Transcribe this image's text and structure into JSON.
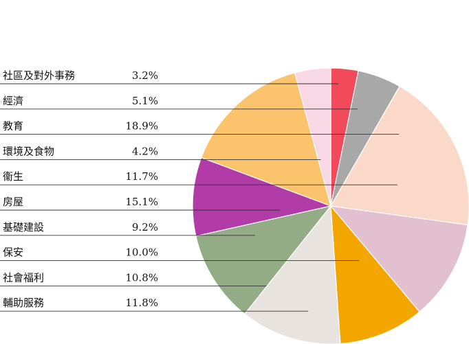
{
  "chart_data": {
    "type": "pie",
    "title": "",
    "categories": [
      "社區及對外事務",
      "經濟",
      "教育",
      "環境及食物",
      "衞生",
      "房屋",
      "基礎建設",
      "保安",
      "社會福利",
      "輔助服務"
    ],
    "values": [
      3.2,
      5.1,
      18.9,
      4.2,
      11.7,
      15.1,
      9.2,
      10.0,
      10.8,
      11.8
    ],
    "value_labels": [
      "3.2%",
      "5.1%",
      "18.9%",
      "4.2%",
      "11.7%",
      "15.1%",
      "9.2%",
      "10.0%",
      "10.8%",
      "11.8%"
    ],
    "colors": [
      "#f24a5a",
      "#a8a8a8",
      "#fad9c8",
      "#ffffff",
      "#e2c0cf",
      "#f3a600",
      "#e8e3de",
      "#93ac86",
      "#b23ca7",
      "#fbc36c",
      "#f8d8e5"
    ],
    "slices_clockwise_from_top": [
      {
        "category": "社區及對外事務",
        "color": "#f24a5a"
      },
      {
        "category": "經濟",
        "color": "#a8a8a8"
      },
      {
        "category": "教育",
        "color": "#fad9c8"
      },
      {
        "category": "衞生",
        "color": "#e2c0cf"
      },
      {
        "category": "保安",
        "color": "#f3a600"
      },
      {
        "category": "輔助服務",
        "color": "#e8e3de"
      },
      {
        "category": "社會福利",
        "color": "#93ac86"
      },
      {
        "category": "基礎建設",
        "color": "#b23ca7"
      },
      {
        "category": "房屋",
        "color": "#fbc36c"
      },
      {
        "category": "環境及食物",
        "color": "#f8d8e5"
      }
    ],
    "legend_placement": "left"
  }
}
